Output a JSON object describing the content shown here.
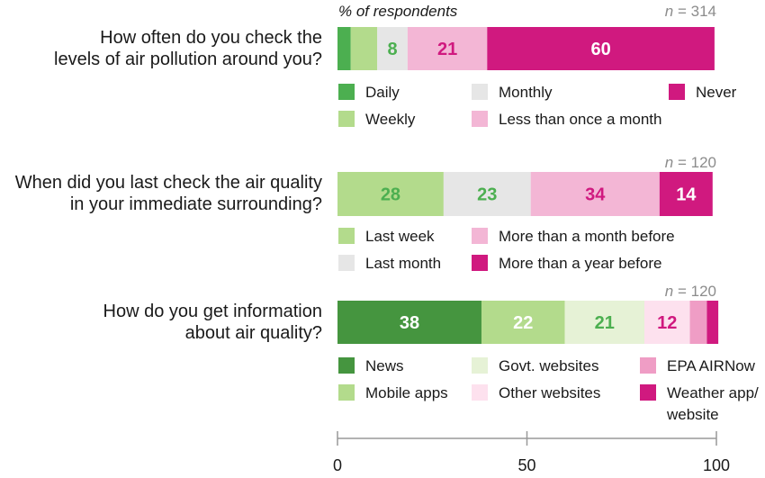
{
  "chart_data": {
    "type": "bar",
    "orientation": "horizontal-stacked",
    "axis_title": "% of respondents",
    "xlim": [
      0,
      100
    ],
    "x_ticks": [
      "0",
      "50",
      "100"
    ],
    "grid": false,
    "legend_placement": "below-each-bar",
    "questions": [
      {
        "question_lines": [
          "How often do you check the",
          "levels of air pollution around you?"
        ],
        "n_prefix": "n",
        "n_rest": " = 314",
        "series": [
          {
            "name": "Daily",
            "value": 3.5,
            "color": "#4caf50",
            "label": ""
          },
          {
            "name": "Weekly",
            "value": 7,
            "color": "#b3db8c",
            "label": ""
          },
          {
            "name": "Monthly",
            "value": 8,
            "color": "#e6e6e6",
            "label": "8",
            "label_color": "#4caf50"
          },
          {
            "name": "Less than once a month",
            "value": 21,
            "color": "#f3b6d5",
            "label": "21",
            "label_color": "#d0197f"
          },
          {
            "name": "Never",
            "value": 60,
            "color": "#d0197f",
            "label": "60",
            "label_color": "#ffffff"
          }
        ],
        "legend_columns": [
          [
            "Daily",
            "Weekly"
          ],
          [
            "Monthly",
            "Less than once a month"
          ],
          [
            "Never"
          ]
        ]
      },
      {
        "question_lines": [
          "When did you last check the air quality",
          "in your immediate surrounding?"
        ],
        "n_prefix": "n",
        "n_rest": " = 120",
        "series": [
          {
            "name": "Last week",
            "value": 28,
            "color": "#b3db8c",
            "label": "28",
            "label_color": "#4caf50"
          },
          {
            "name": "Last month",
            "value": 23,
            "color": "#e6e6e6",
            "label": "23",
            "label_color": "#4caf50"
          },
          {
            "name": "More than a month before",
            "value": 34,
            "color": "#f3b6d5",
            "label": "34",
            "label_color": "#d0197f"
          },
          {
            "name": "More than a year before",
            "value": 14,
            "color": "#d0197f",
            "label": "14",
            "label_color": "#ffffff"
          }
        ],
        "legend_columns": [
          [
            "Last week",
            "Last month"
          ],
          [
            "More than a month before",
            "More than a year before"
          ]
        ]
      },
      {
        "question_lines": [
          "How do you get information",
          "about air quality?"
        ],
        "n_prefix": "n",
        "n_rest": " = 120",
        "series": [
          {
            "name": "News",
            "value": 38,
            "color": "#45953f",
            "label": "38",
            "label_color": "#ffffff"
          },
          {
            "name": "Mobile apps",
            "value": 22,
            "color": "#b3db8c",
            "label": "22",
            "label_color": "#ffffff"
          },
          {
            "name": "Govt. websites",
            "value": 21,
            "color": "#e6f2d6",
            "label": "21",
            "label_color": "#4caf50"
          },
          {
            "name": "Other websites",
            "value": 12,
            "color": "#fde1ee",
            "label": "12",
            "label_color": "#d0197f"
          },
          {
            "name": "EPA AIRNow",
            "value": 4.5,
            "color": "#ef9dc5",
            "label": ""
          },
          {
            "name": "Weather app/\nwebsite",
            "value": 3,
            "color": "#d0197f",
            "label": ""
          }
        ],
        "legend_columns": [
          [
            "News",
            "Mobile apps"
          ],
          [
            "Govt. websites",
            "Other websites"
          ],
          [
            "EPA AIRNow",
            "Weather app/\nwebsite"
          ]
        ]
      }
    ]
  }
}
